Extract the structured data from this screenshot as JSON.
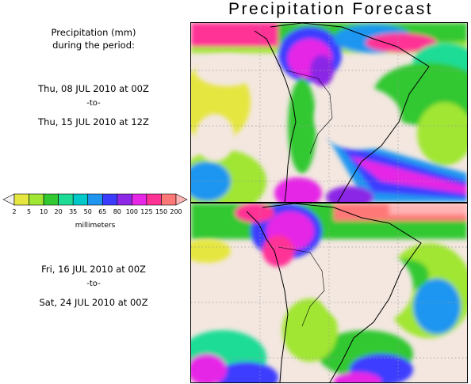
{
  "title": "Precipitation Forecast",
  "caption": {
    "line1": "Precipitation (mm)",
    "line2": "during the period:"
  },
  "period1": {
    "start": "Thu, 08 JUL 2010 at 00Z",
    "to": "-to-",
    "end": "Thu, 15 JUL 2010 at 12Z"
  },
  "period2": {
    "start": "Fri, 16 JUL 2010 at 00Z",
    "to": "-to-",
    "end": "Sat, 24 JUL 2010 at 00Z"
  },
  "legend": {
    "units": "millimeters",
    "levels": [
      "2",
      "5",
      "10",
      "20",
      "35",
      "50",
      "65",
      "80",
      "100",
      "125",
      "150",
      "200"
    ],
    "colors": [
      "#f0f0f0",
      "#e6e640",
      "#a0e632",
      "#32c832",
      "#1edc96",
      "#00c8c8",
      "#1e96f0",
      "#3c3cff",
      "#8c28e6",
      "#e628e6",
      "#ff3296",
      "#ff7878",
      "#ffb4b4"
    ]
  }
}
